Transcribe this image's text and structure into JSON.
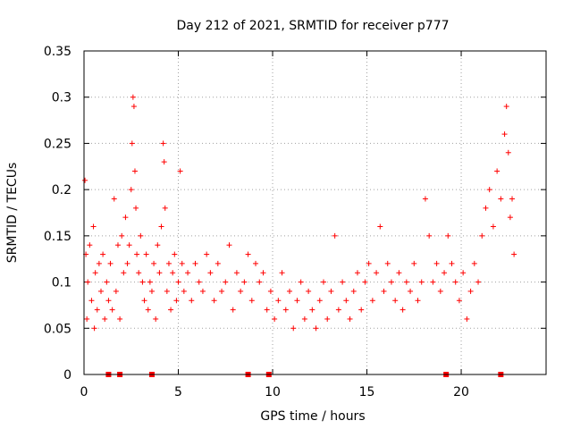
{
  "chart_data": {
    "type": "scatter",
    "title": "Day 212 of 2021, SRMTID for receiver p777",
    "xlabel": "GPS time / hours",
    "ylabel": "SRMTID / TECUs",
    "xlim": [
      0,
      24.5
    ],
    "ylim": [
      0,
      0.35
    ],
    "xticks": [
      0,
      5,
      10,
      15,
      20
    ],
    "xtick_labels": [
      "0",
      "5",
      "10",
      "15",
      "20"
    ],
    "yticks": [
      0,
      0.05,
      0.1,
      0.15,
      0.2,
      0.25,
      0.3,
      0.35
    ],
    "ytick_labels": [
      "0",
      "0.05",
      "0.1",
      "0.15",
      "0.2",
      "0.25",
      "0.3",
      "0.35"
    ],
    "grid": true,
    "marker": "+",
    "color": "#ff0000",
    "series": [
      {
        "name": "SRMTID",
        "x": [
          0.05,
          0.1,
          0.15,
          0.2,
          0.3,
          0.4,
          0.5,
          0.55,
          0.6,
          0.7,
          0.8,
          0.9,
          1.0,
          1.1,
          1.2,
          1.3,
          1.4,
          1.5,
          1.6,
          1.7,
          1.8,
          1.9,
          2.0,
          2.1,
          2.2,
          2.3,
          2.4,
          2.5,
          2.55,
          2.6,
          2.65,
          2.7,
          2.75,
          2.8,
          2.9,
          3.0,
          3.1,
          3.2,
          3.3,
          3.4,
          3.5,
          3.6,
          3.7,
          3.8,
          3.9,
          4.0,
          4.1,
          4.2,
          4.25,
          4.3,
          4.4,
          4.5,
          4.6,
          4.7,
          4.8,
          4.9,
          5.0,
          5.1,
          5.2,
          5.3,
          5.5,
          5.7,
          5.9,
          6.1,
          6.3,
          6.5,
          6.7,
          6.9,
          7.1,
          7.3,
          7.5,
          7.7,
          7.9,
          8.1,
          8.3,
          8.5,
          8.7,
          8.9,
          9.1,
          9.3,
          9.5,
          9.7,
          9.9,
          10.1,
          10.3,
          10.5,
          10.7,
          10.9,
          11.1,
          11.3,
          11.5,
          11.7,
          11.9,
          12.1,
          12.3,
          12.5,
          12.7,
          12.9,
          13.1,
          13.3,
          13.5,
          13.7,
          13.9,
          14.1,
          14.3,
          14.5,
          14.7,
          14.9,
          15.1,
          15.3,
          15.5,
          15.7,
          15.9,
          16.1,
          16.3,
          16.5,
          16.7,
          16.9,
          17.1,
          17.3,
          17.5,
          17.7,
          17.9,
          18.1,
          18.3,
          18.5,
          18.7,
          18.9,
          19.1,
          19.3,
          19.5,
          19.7,
          19.9,
          20.1,
          20.3,
          20.5,
          20.7,
          20.9,
          21.1,
          21.3,
          21.5,
          21.7,
          21.9,
          22.1,
          22.3,
          22.4,
          22.5,
          22.6,
          22.7,
          22.8
        ],
        "y": [
          0.21,
          0.13,
          0.06,
          0.1,
          0.14,
          0.08,
          0.16,
          0.05,
          0.11,
          0.07,
          0.12,
          0.09,
          0.13,
          0.06,
          0.1,
          0.08,
          0.12,
          0.07,
          0.19,
          0.09,
          0.14,
          0.06,
          0.15,
          0.11,
          0.17,
          0.12,
          0.14,
          0.2,
          0.25,
          0.3,
          0.29,
          0.22,
          0.18,
          0.13,
          0.11,
          0.15,
          0.1,
          0.08,
          0.13,
          0.07,
          0.1,
          0.09,
          0.12,
          0.06,
          0.14,
          0.11,
          0.16,
          0.25,
          0.23,
          0.18,
          0.09,
          0.12,
          0.07,
          0.11,
          0.13,
          0.08,
          0.1,
          0.22,
          0.12,
          0.09,
          0.11,
          0.08,
          0.12,
          0.1,
          0.09,
          0.13,
          0.11,
          0.08,
          0.12,
          0.09,
          0.1,
          0.14,
          0.07,
          0.11,
          0.09,
          0.1,
          0.13,
          0.08,
          0.12,
          0.1,
          0.11,
          0.07,
          0.09,
          0.06,
          0.08,
          0.11,
          0.07,
          0.09,
          0.05,
          0.08,
          0.1,
          0.06,
          0.09,
          0.07,
          0.05,
          0.08,
          0.1,
          0.06,
          0.09,
          0.15,
          0.07,
          0.1,
          0.08,
          0.06,
          0.09,
          0.11,
          0.07,
          0.1,
          0.12,
          0.08,
          0.11,
          0.16,
          0.09,
          0.12,
          0.1,
          0.08,
          0.11,
          0.07,
          0.1,
          0.09,
          0.12,
          0.08,
          0.1,
          0.19,
          0.15,
          0.1,
          0.12,
          0.09,
          0.11,
          0.15,
          0.12,
          0.1,
          0.08,
          0.11,
          0.06,
          0.09,
          0.12,
          0.1,
          0.15,
          0.18,
          0.2,
          0.16,
          0.22,
          0.19,
          0.26,
          0.29,
          0.24,
          0.17,
          0.19,
          0.13
        ]
      }
    ],
    "data_gap_markers_x": [
      1.3,
      1.9,
      3.6,
      8.7,
      9.8,
      19.2,
      22.1
    ]
  }
}
